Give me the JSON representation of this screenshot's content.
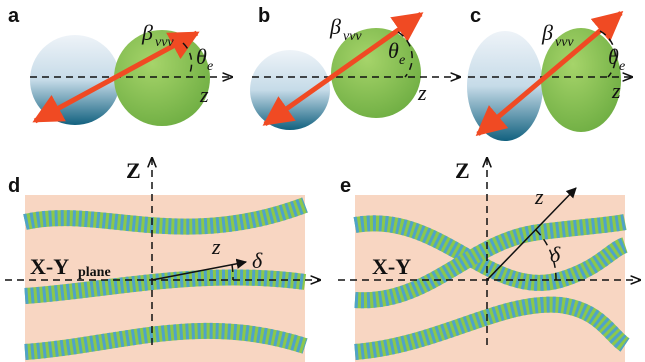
{
  "panels_top": [
    {
      "label": "a",
      "dipole": "β",
      "dipole_sub": "vvv",
      "angle": "θ",
      "angle_sub": "e",
      "axis": "z"
    },
    {
      "label": "b",
      "dipole": "β",
      "dipole_sub": "vvv",
      "angle": "θ",
      "angle_sub": "e",
      "axis": "z"
    },
    {
      "label": "c",
      "dipole": "β",
      "dipole_sub": "vvv",
      "angle": "θ",
      "angle_sub": "e",
      "axis": "z"
    }
  ],
  "panel_d": {
    "label": "d",
    "vertical_axis": "Z",
    "plane_axis": "X-Y",
    "plane_axis_sub": "plane",
    "chain_axis": "z",
    "angle": "δ"
  },
  "panel_e": {
    "label": "e",
    "vertical_axis": "Z",
    "plane_axis": "X-Y",
    "chain_axis": "z",
    "angle": "δ"
  }
}
